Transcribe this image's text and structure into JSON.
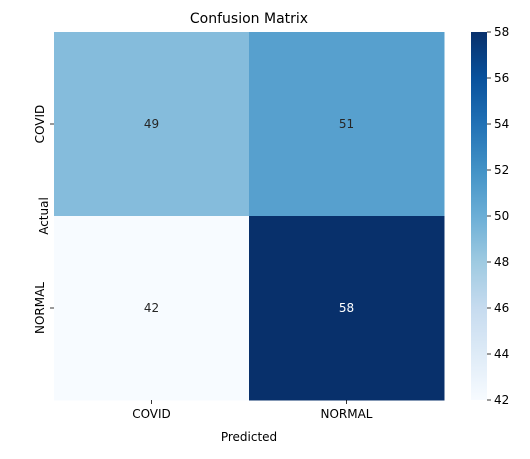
{
  "chart_data": {
    "type": "heatmap",
    "title": "Confusion Matrix",
    "xlabel": "Predicted",
    "ylabel": "Actual",
    "x_categories": [
      "COVID",
      "NORMAL"
    ],
    "y_categories": [
      "COVID",
      "NORMAL"
    ],
    "values": [
      [
        49,
        51
      ],
      [
        42,
        58
      ]
    ],
    "annotations": [
      [
        "49",
        "51"
      ],
      [
        "42",
        "58"
      ]
    ],
    "colormap": "Blues",
    "color_range": [
      42,
      58
    ],
    "colorbar_ticks": [
      42,
      44,
      46,
      48,
      50,
      52,
      54,
      56,
      58
    ],
    "colorbar_tick_labels": [
      "42",
      "44",
      "46",
      "48",
      "50",
      "52",
      "54",
      "56",
      "58"
    ]
  }
}
